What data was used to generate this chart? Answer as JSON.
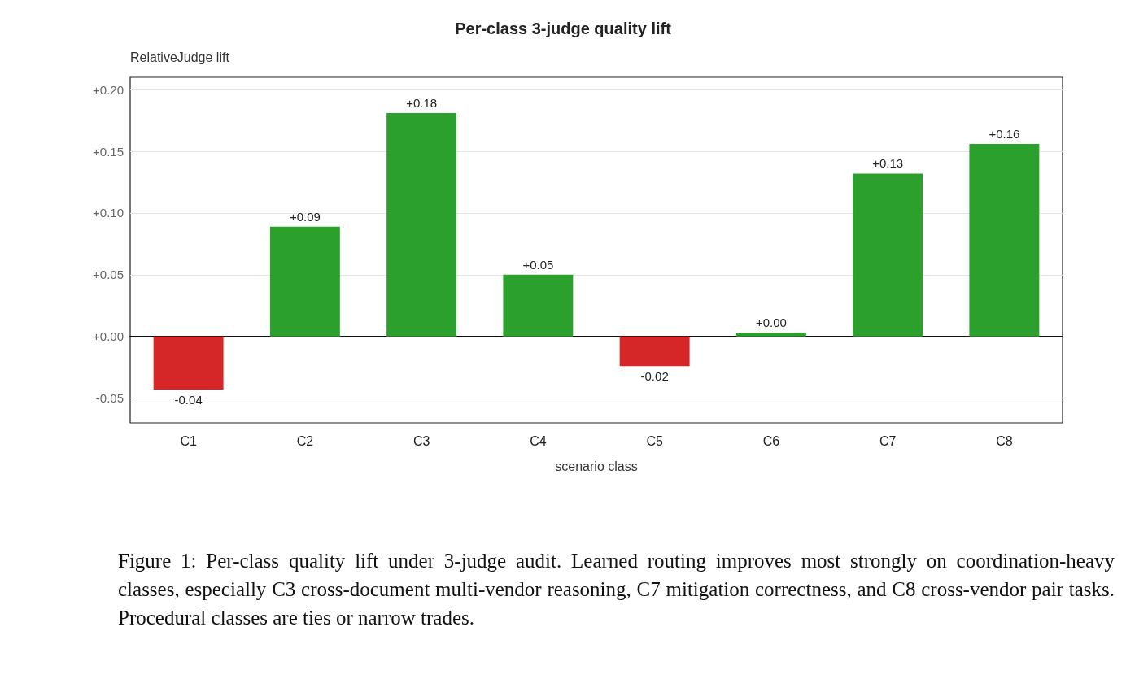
{
  "chart_data": {
    "type": "bar",
    "title": "Per-class 3-judge quality lift",
    "xlabel": "scenario class",
    "ylabel": "RelativeJudge lift",
    "categories": [
      "C1",
      "C2",
      "C3",
      "C4",
      "C5",
      "C6",
      "C7",
      "C8"
    ],
    "values": [
      -0.043,
      0.089,
      0.181,
      0.05,
      -0.024,
      0.003,
      0.132,
      0.156
    ],
    "colors": [
      "#d62728",
      "#2ca02c",
      "#2ca02c",
      "#2ca02c",
      "#d62728",
      "#2ca02c",
      "#2ca02c",
      "#2ca02c"
    ],
    "value_labels": [
      "-0.04",
      "+0.09",
      "+0.18",
      "+0.05",
      "-0.02",
      "+0.00",
      "+0.13",
      "+0.16"
    ],
    "ylim": [
      -0.07,
      0.21
    ],
    "yticks": [
      {
        "value": -0.05,
        "label": "-0.05"
      },
      {
        "value": 0,
        "label": "+0.00"
      },
      {
        "value": 0.05,
        "label": "+0.05"
      },
      {
        "value": 0.1,
        "label": "+0.10"
      },
      {
        "value": 0.15,
        "label": "+0.15"
      },
      {
        "value": 0.2,
        "label": "+0.20"
      }
    ],
    "grid": "y",
    "annotations": [
      "Figure 1: Per-class quality lift under 3-judge audit. Learned routing improves most strongly on coordination-heavy classes, especially C3 cross-document multi-vendor reasoning, C7 mitigation correctness, and C8 cross-vendor pair tasks. Procedural classes are ties or narrow trades."
    ]
  }
}
